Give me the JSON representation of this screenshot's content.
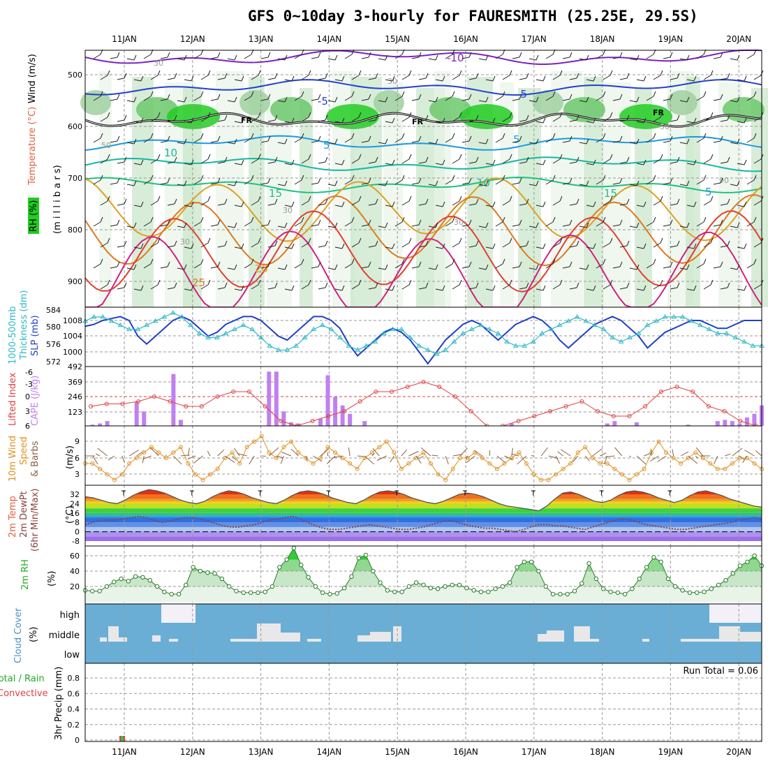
{
  "title": "GFS 0~10day 3-hourly for FAURESMITH (25.25E, 29.5S)",
  "dates": [
    "11JAN",
    "12JAN",
    "13JAN",
    "14JAN",
    "15JAN",
    "16JAN",
    "17JAN",
    "18JAN",
    "19JAN",
    "20JAN"
  ],
  "colors": {
    "rh_green": "#22cc22",
    "temp_hot": "#e04030",
    "temp_warm": "#e8a020",
    "temp_cold": "#2040d0",
    "slp": "#2040c8",
    "thickness": "#30b8c8",
    "cape": "#c080f0",
    "lifted_index": "#e04040",
    "wind": "#e09020",
    "cloud": "#6aaed6",
    "cloud_cell": "#e8e8e8",
    "precip": "#e04040"
  },
  "panels": {
    "upper_air": {
      "ylabels": [
        "RH (%)",
        "Temperature (°C)",
        "Wind (m/s)",
        "(m i l l i b a r s)"
      ],
      "yticks": [
        "500",
        "600",
        "700",
        "800",
        "900"
      ],
      "temp_labels": [
        "-10",
        "-5",
        "-5",
        "5",
        "5",
        "5",
        "10",
        "10",
        "15",
        "15",
        "20",
        "25"
      ],
      "rh_labels": [
        "30",
        "30",
        "30",
        "30",
        "30",
        "50",
        "50",
        "90"
      ],
      "freezing_label": "FR"
    },
    "slp": {
      "ylabels": [
        "1000-500mb",
        "Thickness (dm)",
        "SLP (mb)"
      ],
      "left_ticks": [
        "584",
        "580",
        "576",
        "572"
      ],
      "right_ticks": [
        "1008",
        "1004",
        "1000"
      ]
    },
    "cape": {
      "ylabels": [
        "Lifted Index",
        "CAPE (J/kg)"
      ],
      "li_ticks": [
        "-6",
        "-3",
        "0",
        "3",
        "6"
      ],
      "cape_ticks": [
        "492",
        "369",
        "246",
        "123"
      ]
    },
    "wind10": {
      "ylabels": [
        "10m Wind",
        "Speed",
        "& Barbs",
        "(m/s)"
      ],
      "yticks": [
        "9",
        "6",
        "3"
      ]
    },
    "temp2m": {
      "ylabels": [
        "2m Temp",
        "2m DewPt",
        "(6hr Min/Max)",
        "(°C)"
      ],
      "yticks": [
        "32",
        "24",
        "16",
        "8",
        "0",
        "-8"
      ]
    },
    "rh2m": {
      "ylabels": [
        "2m RH",
        "(%)"
      ],
      "yticks": [
        "60",
        "40",
        "20"
      ]
    },
    "cloud": {
      "ylabels": [
        "Cloud Cover",
        "(%)"
      ],
      "levels": [
        "high",
        "middle",
        "low"
      ]
    },
    "precip": {
      "ylabels": [
        "Total / Rain",
        "Convective",
        "3hr Precip (mm)"
      ],
      "yticks": [
        "0.8",
        "0.6",
        "0.4",
        "0.2",
        "0"
      ],
      "run_total": "Run Total = 0.06"
    }
  },
  "chart_data": [
    {
      "panel": "slp_thickness",
      "type": "line",
      "x_unit": "hours since 10 Jan 12 UTC (3-hourly)",
      "series": [
        {
          "name": "SLP (mb)",
          "axis": "right",
          "values": [
            1006.5,
            1007,
            1008,
            1008.5,
            1009,
            1008,
            1004,
            1002,
            1004,
            1006,
            1008,
            1009,
            1008,
            1006,
            1004,
            1005,
            1007,
            1008,
            1009,
            1009,
            1008,
            1006,
            1004,
            1003,
            1005,
            1007,
            1009,
            1009,
            1008,
            1006,
            1002,
            999,
            1001,
            1003,
            1005,
            1006,
            1005,
            1003,
            1000,
            997,
            1000,
            1003,
            1005,
            1007,
            1008,
            1007,
            1005,
            1003,
            1005,
            1007,
            1008,
            1009,
            1008,
            1006,
            1003,
            1001,
            1003,
            1005,
            1007,
            1008,
            1009,
            1008,
            1006,
            1004,
            1001,
            1003,
            1005,
            1006,
            1007,
            1008,
            1008,
            1007,
            1006,
            1006,
            1007,
            1008,
            1008,
            1008
          ]
        },
        {
          "name": "Thickness (dm)",
          "axis": "left",
          "values": [
            582,
            583,
            583,
            582,
            581,
            580,
            580,
            581,
            582,
            583,
            584,
            583,
            581,
            579,
            578,
            578,
            579,
            580,
            581,
            580,
            578,
            576,
            575,
            575,
            576,
            578,
            580,
            581,
            580,
            578,
            576,
            575,
            576,
            577,
            579,
            580,
            580,
            578,
            576,
            575,
            574,
            575,
            577,
            579,
            580,
            581,
            580,
            579,
            577,
            576,
            576,
            577,
            579,
            580,
            581,
            582,
            583,
            582,
            581,
            580,
            578,
            577,
            578,
            579,
            581,
            582,
            583,
            583,
            583,
            582,
            581,
            580,
            579,
            579,
            578,
            577,
            576,
            576
          ]
        }
      ]
    },
    {
      "panel": "cape_li",
      "type": "bar",
      "series": [
        {
          "name": "CAPE (J/kg)",
          "values": [
            0,
            10,
            20,
            40,
            0,
            0,
            0,
            200,
            120,
            0,
            0,
            0,
            430,
            50,
            0,
            0,
            0,
            0,
            0,
            0,
            0,
            0,
            0,
            0,
            0,
            450,
            450,
            120,
            30,
            20,
            0,
            0,
            60,
            420,
            240,
            170,
            100,
            0,
            40,
            0,
            0,
            0,
            0,
            0,
            0,
            0,
            0,
            0,
            0,
            0,
            0,
            0,
            0,
            0,
            0,
            0,
            0,
            0,
            20,
            0,
            0,
            0,
            0,
            0,
            0,
            0,
            0,
            0,
            0,
            0,
            0,
            20,
            40,
            0,
            0,
            30,
            0,
            0,
            0,
            0,
            0,
            0,
            10,
            0,
            0,
            0,
            40,
            50,
            40,
            20,
            70,
            100,
            170
          ]
        },
        {
          "name": "Lifted Index",
          "values": [
            2,
            1.5,
            1.5,
            1,
            0,
            1,
            2,
            2,
            0,
            -1,
            -1,
            2,
            5,
            6,
            5,
            4,
            3,
            1,
            -1,
            -1,
            -2,
            -3,
            -2,
            0,
            3,
            6,
            6,
            5,
            4,
            3,
            2,
            1,
            3,
            4,
            4,
            2,
            -1,
            -2,
            -1,
            2,
            3,
            5,
            6
          ]
        }
      ]
    },
    {
      "panel": "wind10",
      "type": "line",
      "name": "10m Wind Speed (m/s)",
      "values": [
        5,
        5,
        4,
        3,
        2,
        3,
        5,
        6,
        7,
        8,
        7,
        6,
        7,
        8,
        5,
        3,
        2,
        3,
        4,
        6,
        7,
        5,
        8,
        9,
        10,
        7,
        6,
        8,
        9,
        7,
        6,
        5,
        6,
        8,
        7,
        6,
        5,
        4,
        6,
        7,
        8,
        9,
        7,
        4,
        5,
        6,
        7,
        5,
        3,
        2,
        4,
        6,
        6,
        7,
        6,
        5,
        4,
        5,
        6,
        7,
        5,
        3,
        2,
        2,
        3,
        4,
        5,
        7,
        8,
        6,
        5,
        5,
        4,
        3,
        2,
        3,
        4,
        7,
        9,
        7,
        6,
        5,
        6,
        7,
        6,
        5,
        4,
        4,
        5,
        6,
        6,
        5,
        4
      ]
    },
    {
      "panel": "temp2m",
      "type": "area",
      "series": [
        {
          "name": "2m Temp",
          "values": [
            30,
            29,
            27,
            25,
            24,
            27,
            31,
            34,
            36,
            35,
            33,
            30,
            27,
            25,
            24,
            26,
            30,
            33,
            35,
            34,
            32,
            29,
            27,
            25,
            24,
            27,
            31,
            34,
            35,
            34,
            32,
            29,
            27,
            25,
            24,
            27,
            31,
            34,
            35,
            34,
            32,
            29,
            27,
            25,
            24,
            26,
            29,
            32,
            33,
            32,
            30,
            27,
            24,
            22,
            21,
            20,
            19,
            18,
            22,
            28,
            33,
            34,
            32,
            29,
            26,
            25,
            27,
            31,
            34,
            35,
            34,
            32,
            29,
            27,
            25,
            27,
            31,
            34,
            35,
            33,
            31,
            28,
            26,
            24,
            22,
            21
          ]
        },
        {
          "name": "2m DewPt",
          "values": [
            6,
            8,
            10,
            10,
            10,
            11,
            12,
            13,
            12,
            10,
            8,
            9,
            11,
            12,
            12,
            11,
            9,
            7,
            5,
            4,
            4,
            5,
            6,
            8,
            10,
            11,
            12,
            13,
            11,
            8,
            5,
            3,
            2,
            2,
            3,
            4,
            5,
            6,
            5,
            4,
            3,
            2,
            2,
            3,
            4,
            6,
            8,
            10,
            9,
            7,
            5,
            4,
            3,
            3,
            2,
            1,
            0,
            2,
            4,
            6,
            6,
            5,
            5,
            4,
            3,
            2,
            4,
            6,
            8,
            10,
            11,
            10,
            8,
            6,
            5,
            4,
            3,
            2,
            2,
            3,
            4,
            5,
            6,
            7,
            8,
            10,
            11,
            12,
            11
          ]
        }
      ]
    },
    {
      "panel": "rh2m",
      "type": "area",
      "name": "2m RH (%)",
      "values": [
        15,
        14,
        14,
        20,
        26,
        30,
        27,
        33,
        32,
        28,
        20,
        13,
        10,
        10,
        22,
        45,
        40,
        38,
        37,
        30,
        20,
        14,
        12,
        12,
        12,
        13,
        20,
        45,
        55,
        70,
        48,
        32,
        20,
        12,
        10,
        11,
        18,
        33,
        57,
        61,
        40,
        25,
        15,
        13,
        13,
        20,
        25,
        22,
        18,
        17,
        20,
        22,
        22,
        18,
        15,
        13,
        13,
        17,
        20,
        25,
        45,
        52,
        52,
        40,
        20,
        10,
        10,
        10,
        14,
        24,
        50,
        30,
        17,
        13,
        12,
        10,
        17,
        30,
        45,
        58,
        52,
        30,
        20,
        15,
        12,
        12,
        13,
        17,
        22,
        28,
        37,
        47,
        52,
        60,
        47
      ]
    },
    {
      "panel": "precip",
      "type": "bar",
      "series": [
        {
          "name": "3hr Precip (mm)",
          "values": [
            0,
            0,
            0,
            0,
            0,
            0,
            0,
            0,
            0,
            0,
            0,
            0,
            0,
            0.06,
            0,
            0,
            0,
            0,
            0,
            0
          ]
        }
      ],
      "run_total": 0.06
    }
  ]
}
